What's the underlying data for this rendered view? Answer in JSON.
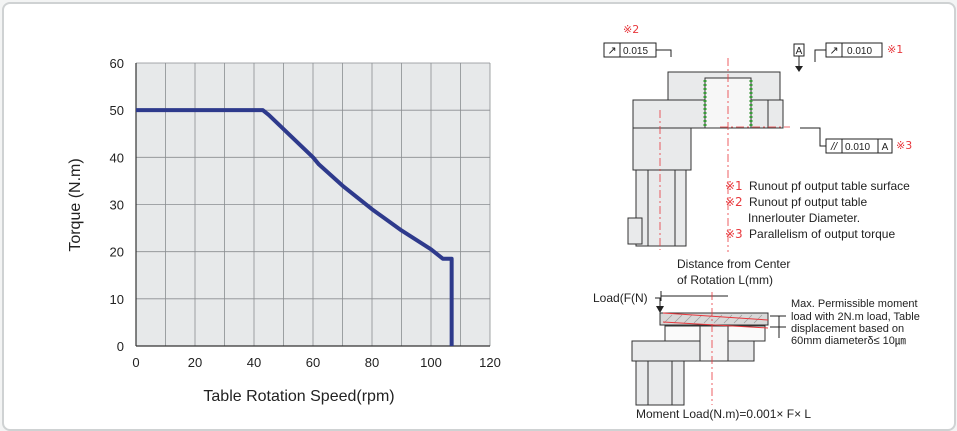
{
  "chart_data": {
    "type": "line",
    "title": "",
    "xlabel": "Table Rotation Speed(rpm)",
    "ylabel": "Torque (N.m)",
    "xlim": [
      0,
      120
    ],
    "ylim": [
      0,
      60
    ],
    "xticks": [
      "0",
      "20",
      "40",
      "60",
      "80",
      "100",
      "120"
    ],
    "yticks": [
      "0",
      "10",
      "20",
      "30",
      "40",
      "50",
      "60"
    ],
    "grid": true,
    "series": [
      {
        "color": "#2e3a8c",
        "x": [
          0,
          43,
          45,
          50,
          55,
          60,
          62,
          70,
          80,
          90,
          100,
          104,
          107,
          107
        ],
        "y": [
          50,
          50,
          49,
          46,
          43,
          40,
          38.5,
          34,
          29,
          24.5,
          20.5,
          18.5,
          18.5,
          0
        ]
      }
    ]
  },
  "diagram": {
    "tol2_mark": "※2",
    "tol2_symbol": "↗",
    "tol2_value": "0.015",
    "datum_label": "A",
    "tol1_symbol": "↗",
    "tol1_value": "0.010",
    "tol1_mark": "※1",
    "tol3_symbol": "//",
    "tol3_value": "0.010",
    "tol3_datum": "A",
    "tol3_mark": "※3",
    "legend": [
      {
        "mark": "※1",
        "text": "Runout pf output table surface"
      },
      {
        "mark": "※2",
        "text": "Runout pf output table"
      },
      {
        "mark": "",
        "text": "Innerlouter Diameter."
      },
      {
        "mark": "※3",
        "text": "Parallelism of output torque"
      }
    ],
    "distance_line1": "Distance from Center",
    "distance_line2": "of Rotation L(mm)",
    "load_label": "Load(F(N)",
    "max_line1": "Max. Permissible moment",
    "max_line2": "load with 2N.m load, Table",
    "max_line3": "displacement based on",
    "max_line4": "60mm diameterδ≤ 10㎛",
    "moment_formula": "Moment Load(N.m)=0.001× F× L"
  },
  "colors": {
    "line": "#2e3a8c",
    "grid_bg": "#e7e9ea",
    "grid_line": "#8a8d90",
    "note_red": "#e8383d",
    "center_line": "#e8383d",
    "part_fill": "#e9eaeb",
    "part_stroke": "#333333",
    "bolt_green": "#3a9a3a"
  }
}
